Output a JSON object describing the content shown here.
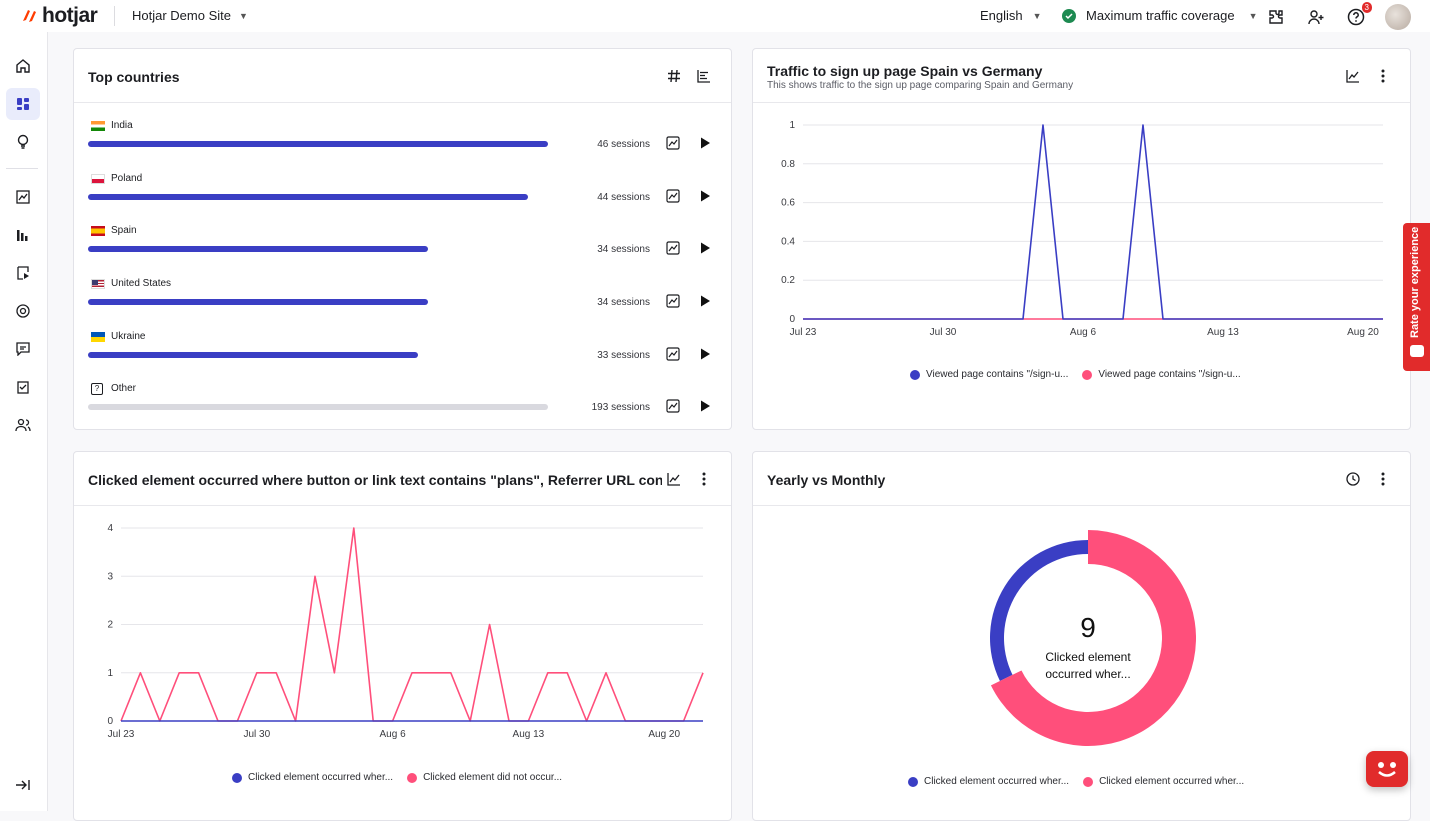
{
  "app": {
    "logo": "hotjar",
    "site": "Hotjar Demo Site"
  },
  "topbar": {
    "language": "English",
    "coverage": "Maximum traffic coverage",
    "notifications_count": "3"
  },
  "icons": {
    "sidebar": [
      "home-icon",
      "dashboard-icon",
      "lightbulb-icon",
      "trends-icon",
      "heatmaps-icon",
      "recordings-icon",
      "engage-icon",
      "feedback-icon",
      "surveys-icon",
      "users-icon",
      "collapse-icon"
    ],
    "topbar": [
      "integrations-icon",
      "invite-user-icon",
      "help-icon",
      "avatar"
    ]
  },
  "colors": {
    "accent": "#3a3ec4",
    "pink": "#ff4f7b",
    "brand": "#e12b2b",
    "green": "#1d8a51"
  },
  "top_countries": {
    "title": "Top countries",
    "max_sessions": 46,
    "rows": [
      {
        "name": "India",
        "sessions": 46,
        "label": "46 sessions",
        "flag": "in"
      },
      {
        "name": "Poland",
        "sessions": 44,
        "label": "44 sessions",
        "flag": "pl"
      },
      {
        "name": "Spain",
        "sessions": 34,
        "label": "34 sessions",
        "flag": "es"
      },
      {
        "name": "United States",
        "sessions": 34,
        "label": "34 sessions",
        "flag": "us"
      },
      {
        "name": "Ukraine",
        "sessions": 33,
        "label": "33 sessions",
        "flag": "ua"
      },
      {
        "name": "Other",
        "sessions": 193,
        "label": "193 sessions",
        "flag": "other"
      }
    ]
  },
  "traffic_card": {
    "title": "Traffic to sign up page Spain vs Germany",
    "subtitle": "This shows traffic to the sign up page comparing Spain and Germany",
    "legend": [
      "Viewed page contains \"/sign-u...",
      "Viewed page contains \"/sign-u..."
    ]
  },
  "clicked_card": {
    "title": "Clicked element occurred where button or link text contains \"plans\", Referrer URL contains...",
    "legend": [
      "Clicked element occurred wher...",
      "Clicked element did not occur..."
    ]
  },
  "yearly_card": {
    "title": "Yearly vs Monthly",
    "center_value": "9",
    "center_label": "Clicked element occurred wher...",
    "legend": [
      "Clicked element occurred wher...",
      "Clicked element occurred wher..."
    ]
  },
  "rate": {
    "label": "Rate your experience"
  },
  "chart_data": [
    {
      "type": "line",
      "x": [
        "Jul 23",
        "Jul 24",
        "Jul 25",
        "Jul 26",
        "Jul 27",
        "Jul 28",
        "Jul 29",
        "Jul 30",
        "Jul 31",
        "Aug 1",
        "Aug 2",
        "Aug 3",
        "Aug 4",
        "Aug 5",
        "Aug 6",
        "Aug 7",
        "Aug 8",
        "Aug 9",
        "Aug 10",
        "Aug 11",
        "Aug 12",
        "Aug 13",
        "Aug 14",
        "Aug 15",
        "Aug 16",
        "Aug 17",
        "Aug 18",
        "Aug 19",
        "Aug 20",
        "Aug 21"
      ],
      "xticks": [
        "Jul 23",
        "Jul 30",
        "Aug 6",
        "Aug 13",
        "Aug 20"
      ],
      "yticks": [
        0,
        0.2,
        0.4,
        0.6,
        0.8,
        1
      ],
      "ylim": [
        0,
        1
      ],
      "series": [
        {
          "name": "Viewed page contains \"/sign-u...",
          "values": [
            0,
            0,
            0,
            0,
            0,
            0,
            0,
            0,
            0,
            0,
            0,
            0,
            1,
            0,
            0,
            0,
            0,
            1,
            0,
            0,
            0,
            0,
            0,
            0,
            0,
            0,
            0,
            0,
            0,
            0
          ]
        },
        {
          "name": "Viewed page contains \"/sign-u...",
          "values": [
            0,
            0,
            0,
            0,
            0,
            0,
            0,
            0,
            0,
            0,
            0,
            0,
            0,
            0,
            0,
            0,
            0,
            0,
            0,
            0,
            0,
            0,
            0,
            0,
            0,
            0,
            0,
            0,
            0,
            0
          ]
        }
      ]
    },
    {
      "type": "line",
      "x": [
        "Jul 23",
        "Jul 24",
        "Jul 25",
        "Jul 26",
        "Jul 27",
        "Jul 28",
        "Jul 29",
        "Jul 30",
        "Jul 31",
        "Aug 1",
        "Aug 2",
        "Aug 3",
        "Aug 4",
        "Aug 5",
        "Aug 6",
        "Aug 7",
        "Aug 8",
        "Aug 9",
        "Aug 10",
        "Aug 11",
        "Aug 12",
        "Aug 13",
        "Aug 14",
        "Aug 15",
        "Aug 16",
        "Aug 17",
        "Aug 18",
        "Aug 19",
        "Aug 20",
        "Aug 21",
        "Aug 22"
      ],
      "xticks": [
        "Jul 23",
        "Jul 30",
        "Aug 6",
        "Aug 13",
        "Aug 20"
      ],
      "yticks": [
        0,
        1,
        2,
        3,
        4
      ],
      "ylim": [
        0,
        4
      ],
      "series": [
        {
          "name": "Clicked element occurred wher...",
          "values": [
            0,
            0,
            0,
            0,
            0,
            0,
            0,
            0,
            0,
            0,
            0,
            0,
            0,
            0,
            0,
            0,
            0,
            0,
            0,
            0,
            0,
            0,
            0,
            0,
            0,
            0,
            0,
            0,
            0,
            0,
            0
          ]
        },
        {
          "name": "Clicked element did not occur...",
          "values": [
            0,
            1,
            0,
            1,
            1,
            0,
            0,
            1,
            1,
            0,
            3,
            1,
            4,
            0,
            0,
            1,
            1,
            1,
            0,
            2,
            0,
            0,
            1,
            1,
            0,
            1,
            0,
            0,
            0,
            0,
            1
          ]
        }
      ]
    },
    {
      "type": "pie",
      "center_value": "9",
      "series": [
        {
          "name": "Clicked element occurred wher...",
          "value": 2.9
        },
        {
          "name": "Clicked element occurred wher...",
          "value": 6.1
        }
      ]
    }
  ]
}
